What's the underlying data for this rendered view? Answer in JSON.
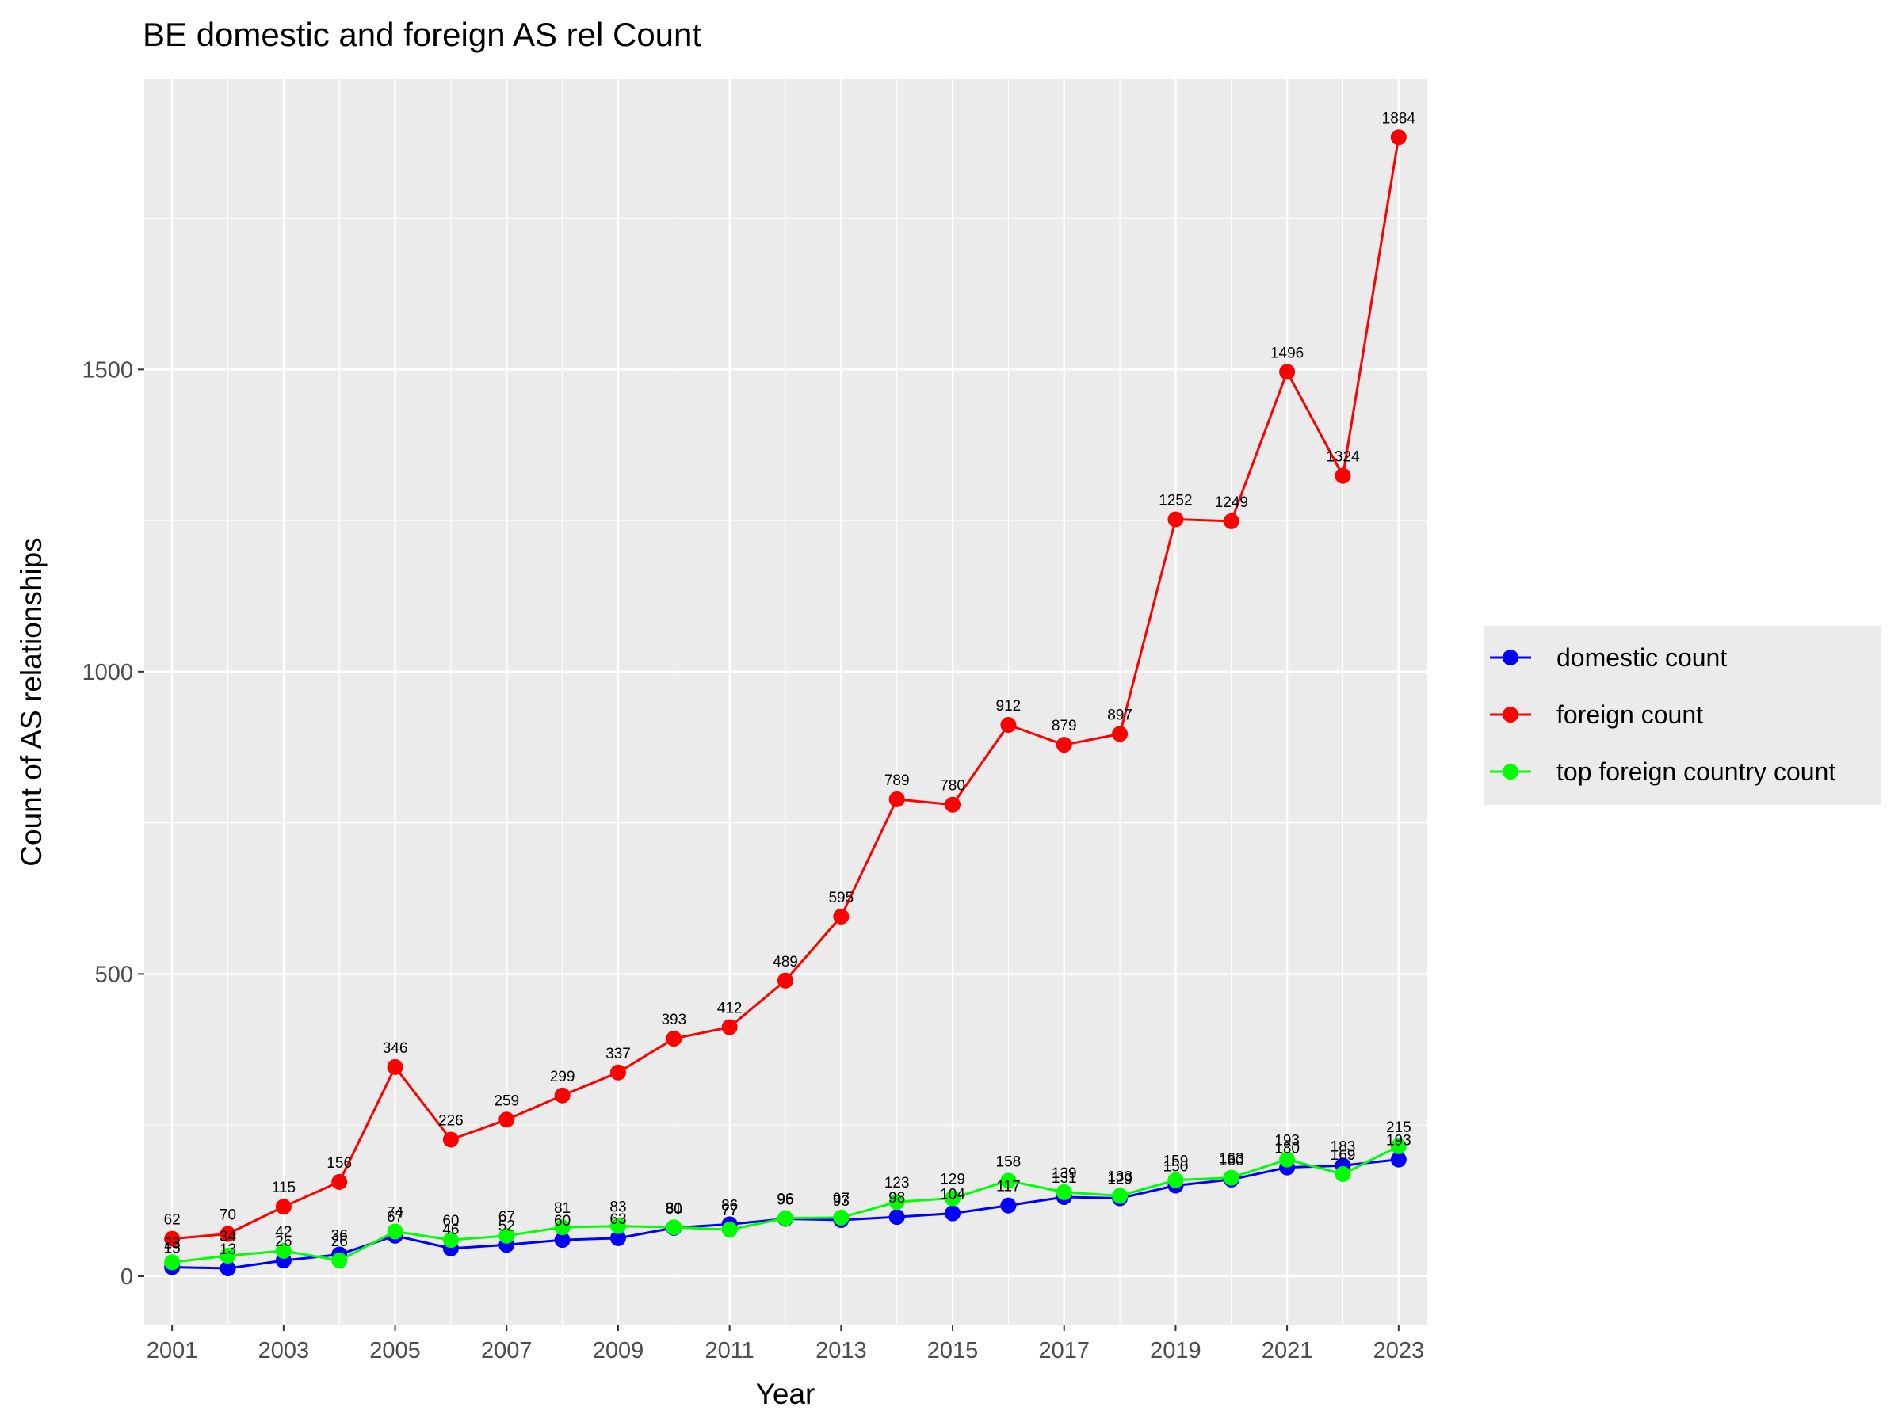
{
  "chart_data": {
    "type": "line",
    "title": "BE domestic and foreign AS rel Count",
    "xlabel": "Year",
    "ylabel": "Count of AS relationships",
    "x": [
      2001,
      2002,
      2003,
      2004,
      2005,
      2006,
      2007,
      2008,
      2009,
      2010,
      2011,
      2012,
      2013,
      2014,
      2015,
      2016,
      2017,
      2018,
      2019,
      2020,
      2021,
      2022,
      2023
    ],
    "x_ticks": [
      2001,
      2003,
      2005,
      2007,
      2009,
      2011,
      2013,
      2015,
      2017,
      2019,
      2021,
      2023
    ],
    "y_ticks": [
      0,
      500,
      1000,
      1500
    ],
    "xlim": [
      2000.5,
      2023.5
    ],
    "ylim": [
      -80,
      1980
    ],
    "grid": true,
    "legend_position": "right",
    "series": [
      {
        "name": "domestic count",
        "color": "#0000ff",
        "values": [
          15,
          13,
          26,
          36,
          67,
          46,
          52,
          60,
          63,
          80,
          86,
          95,
          93,
          98,
          104,
          117,
          131,
          129,
          150,
          160,
          180,
          183,
          193
        ]
      },
      {
        "name": "foreign count",
        "color": "#ff0000",
        "values": [
          62,
          70,
          115,
          156,
          346,
          226,
          259,
          299,
          337,
          393,
          412,
          489,
          595,
          789,
          780,
          912,
          879,
          897,
          1252,
          1249,
          1496,
          1324,
          1884
        ]
      },
      {
        "name": "top foreign country count",
        "color": "#00ff00",
        "values": [
          23,
          34,
          42,
          26,
          74,
          60,
          67,
          81,
          83,
          81,
          77,
          96,
          97,
          123,
          129,
          158,
          139,
          133,
          159,
          163,
          193,
          169,
          215
        ]
      }
    ]
  }
}
